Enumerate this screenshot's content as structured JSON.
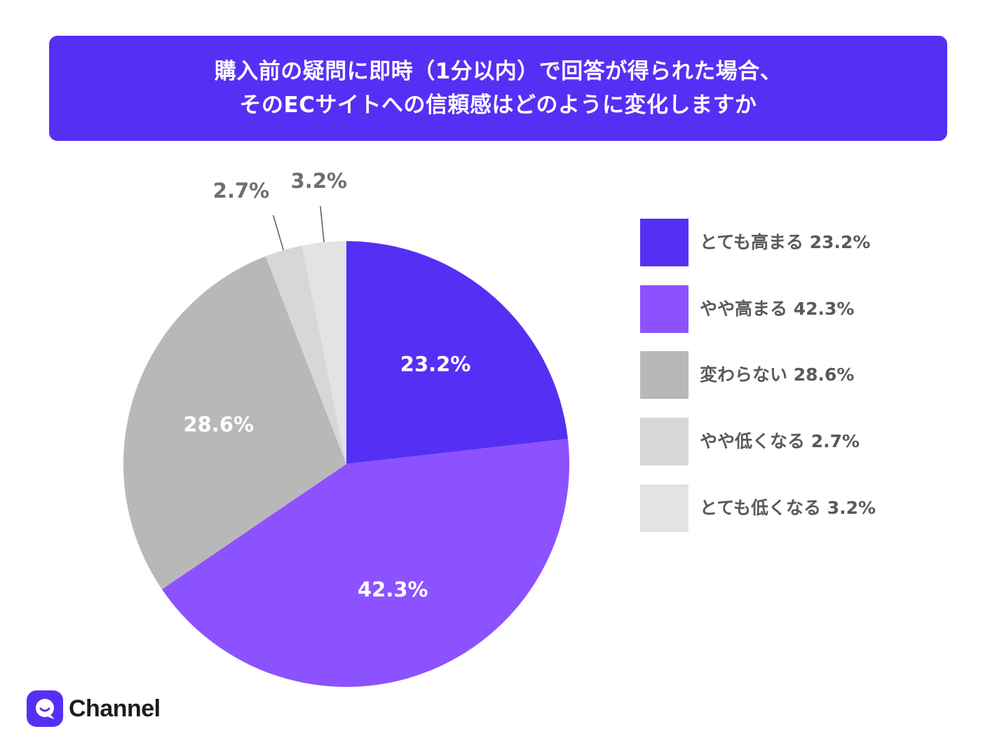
{
  "title": {
    "line1": "購入前の疑問に即時（1分以内）で回答が得られた場合、",
    "line2": "そのECサイトへの信頼感はどのように変化しますか"
  },
  "colors": {
    "banner": "#5530f4",
    "slices": [
      "#5530f4",
      "#8c52ff",
      "#b8b8b8",
      "#d7d7d7",
      "#e3e3e3"
    ],
    "outside_label": "#6e6e6e",
    "inside_label": "#ffffff"
  },
  "chart_data": {
    "type": "pie",
    "title": "購入前の疑問に即時（1分以内）で回答が得られた場合、そのECサイトへの信頼感はどのように変化しますか",
    "slices": [
      {
        "category": "とても高まる",
        "value": 23.2,
        "label": "23.2%",
        "legend": "とても高まる 23.2%"
      },
      {
        "category": "やや高まる",
        "value": 42.3,
        "label": "42.3%",
        "legend": "やや高まる 42.3%"
      },
      {
        "category": "変わらない",
        "value": 28.6,
        "label": "28.6%",
        "legend": "変わらない 28.6%"
      },
      {
        "category": "やや低くなる",
        "value": 2.7,
        "label": "2.7%",
        "legend": "やや低くなる 2.7%"
      },
      {
        "category": "とても低くなる",
        "value": 3.2,
        "label": "3.2%",
        "legend": "とても低くなる 3.2%"
      }
    ],
    "start": "12 o'clock",
    "direction": "clockwise",
    "legend_position": "right"
  },
  "logo": {
    "text": "Channel",
    "icon": "channel-logo-icon"
  }
}
